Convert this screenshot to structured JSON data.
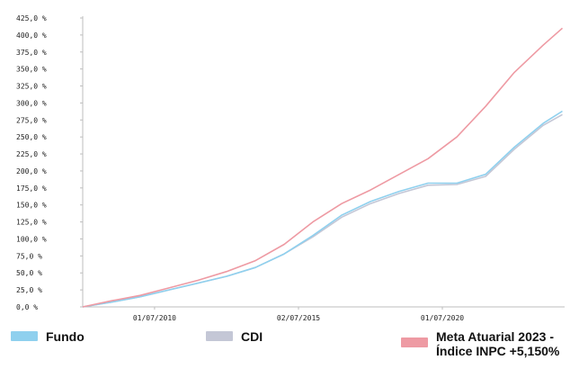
{
  "chart_data": {
    "type": "line",
    "title": "",
    "xlabel": "",
    "ylabel": "",
    "ylim": [
      0,
      425
    ],
    "y_ticks": [
      "0,0 %",
      "25,0 %",
      "50,0 %",
      "75,0 %",
      "100,0 %",
      "125,0 %",
      "150,0 %",
      "175,0 %",
      "200,0 %",
      "225,0 %",
      "250,0 %",
      "275,0 %",
      "300,0 %",
      "325,0 %",
      "350,0 %",
      "375,0 %",
      "400,0 %",
      "425,0 %"
    ],
    "x_ticks": [
      "01/07/2010",
      "02/07/2015",
      "01/07/2020"
    ],
    "xlim": [
      "2008-01-01",
      "2024-09-30"
    ],
    "grid": false,
    "legend_position": "bottom",
    "x": [
      "2008-01",
      "2009-01",
      "2010-01",
      "2011-01",
      "2012-01",
      "2013-01",
      "2014-01",
      "2015-01",
      "2016-01",
      "2017-01",
      "2018-01",
      "2019-01",
      "2020-01",
      "2021-01",
      "2022-01",
      "2023-01",
      "2024-01",
      "2024-09"
    ],
    "series": [
      {
        "name": "Fundo",
        "color": "#8fd0ee",
        "values": [
          0,
          7,
          15,
          25,
          35,
          45,
          58,
          78,
          105,
          135,
          155,
          170,
          182,
          182,
          195,
          235,
          270,
          288
        ]
      },
      {
        "name": "CDI",
        "color": "#c4c7d6",
        "values": [
          0,
          7,
          15,
          25,
          35,
          45,
          58,
          78,
          103,
          132,
          152,
          167,
          179,
          180,
          192,
          232,
          267,
          283
        ]
      },
      {
        "name": "Meta Atuarial 2023 - Índice INPC +5,150%",
        "color": "#ee9aa3",
        "values": [
          0,
          9,
          17,
          28,
          39,
          52,
          68,
          92,
          125,
          152,
          172,
          195,
          218,
          250,
          295,
          345,
          385,
          410
        ]
      }
    ]
  }
}
